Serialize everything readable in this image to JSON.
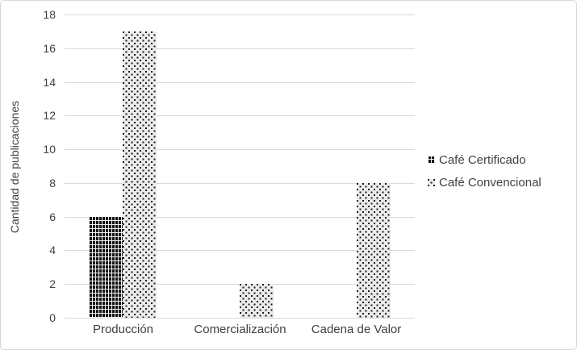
{
  "chart_data": {
    "type": "bar",
    "categories": [
      "Producción",
      "Comercialización",
      "Cadena de Valor"
    ],
    "series": [
      {
        "name": "Café Certificado",
        "values": [
          6,
          0,
          0
        ],
        "pattern": "dark-weave",
        "color": "#161616"
      },
      {
        "name": "Café Convencional",
        "values": [
          17,
          2,
          8
        ],
        "pattern": "light-dots",
        "color": "#ebebeb"
      }
    ],
    "title": "",
    "xlabel": "",
    "ylabel": "Cantidad de publicaciones",
    "ylim": [
      0,
      18
    ],
    "ytick_step": 2,
    "grid": true,
    "legend_position": "right"
  },
  "colors": {
    "gridline": "#d9d9d9",
    "axis_text": "#404040",
    "background": "#ffffff",
    "border": "#d8d8d8"
  }
}
